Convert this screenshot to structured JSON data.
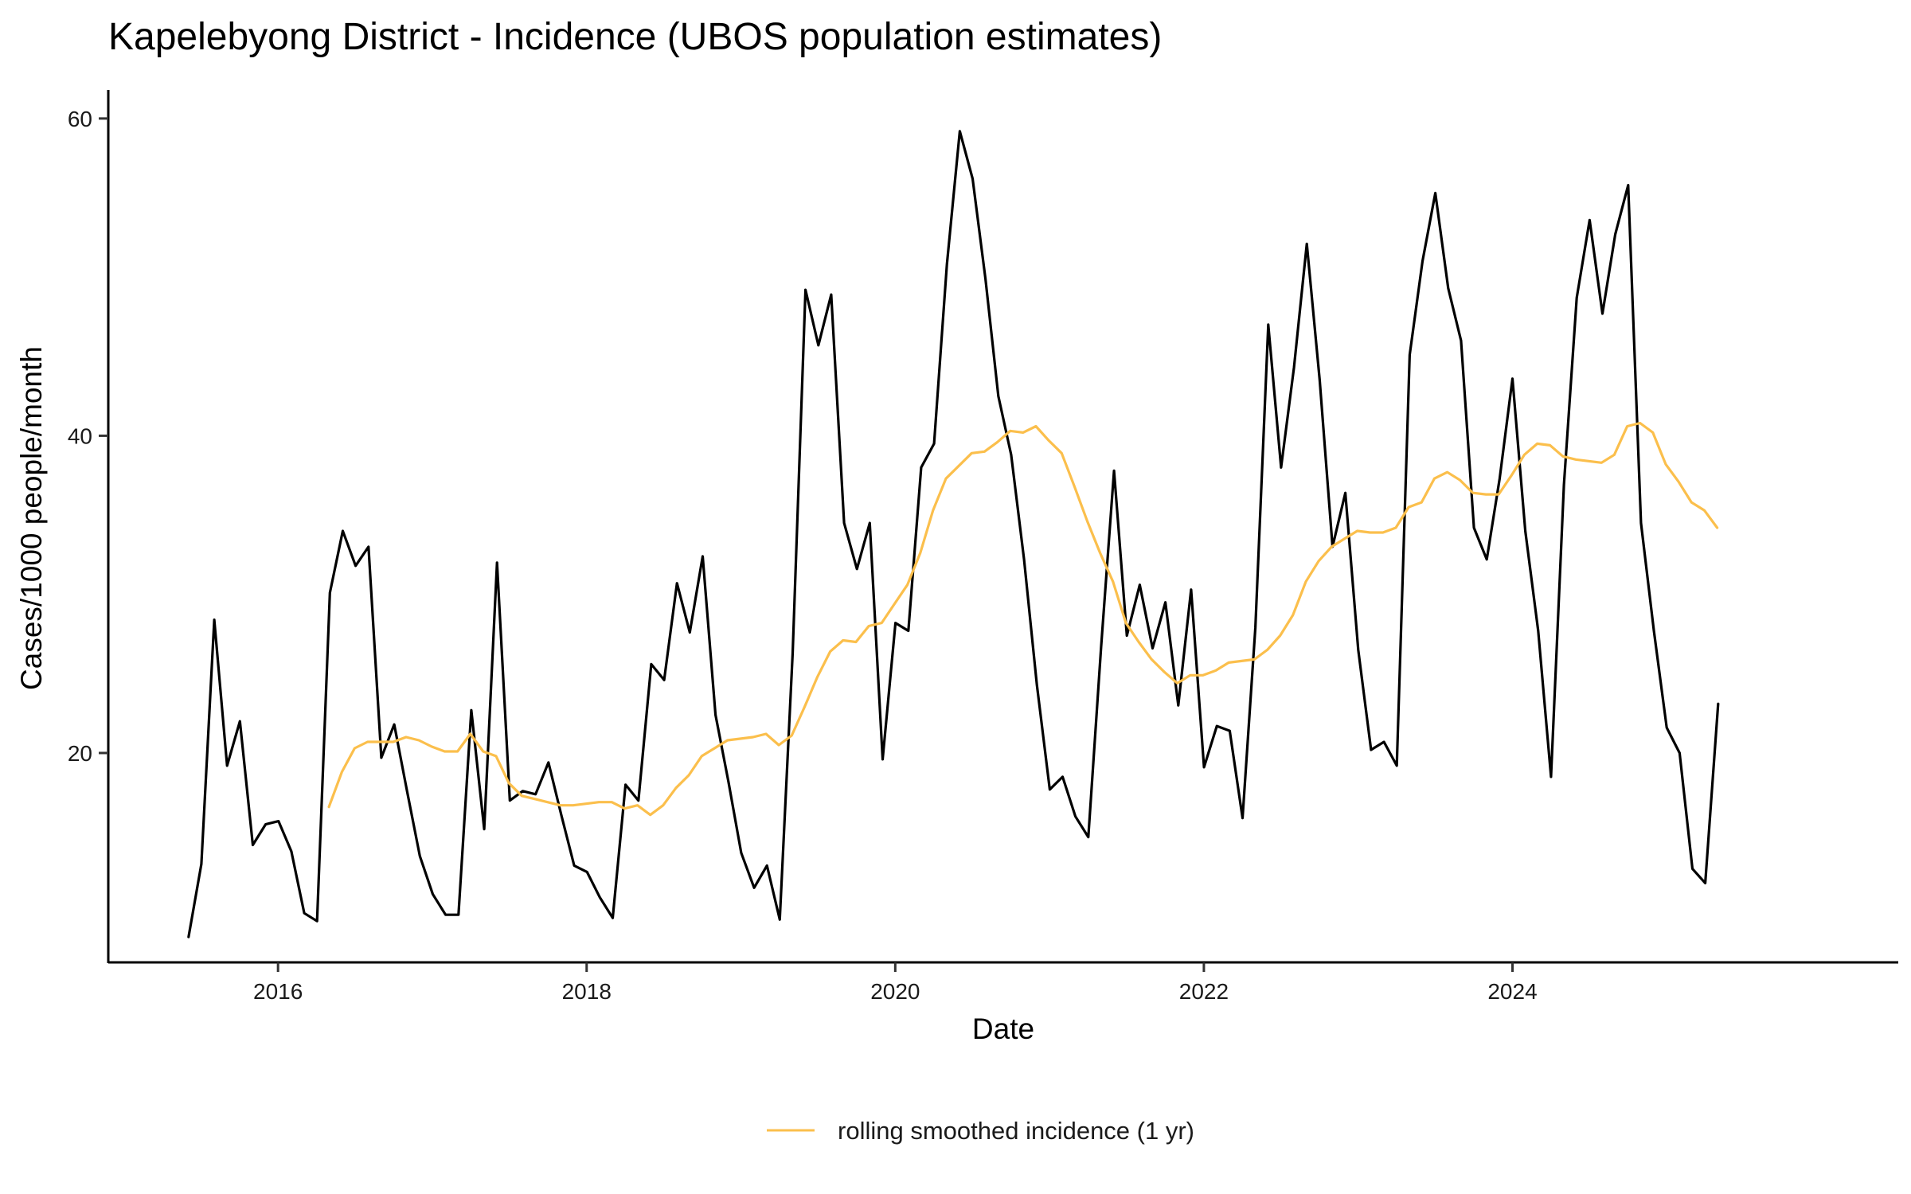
{
  "chart_data": {
    "type": "line",
    "title": "Kapelebyong District - Incidence (UBOS population estimates)",
    "xlabel": "Date",
    "ylabel": "Cases/1000 people/month",
    "xlim": [
      2014.9,
      2026.5
    ],
    "ylim": [
      6.8,
      61.8
    ],
    "x_ticks": [
      {
        "value": 2016,
        "label": "2016"
      },
      {
        "value": 2018,
        "label": "2018"
      },
      {
        "value": 2020,
        "label": "2020"
      },
      {
        "value": 2022,
        "label": "2022"
      },
      {
        "value": 2024,
        "label": "2024"
      }
    ],
    "y_ticks": [
      {
        "value": 20,
        "label": "20"
      },
      {
        "value": 40,
        "label": "40"
      },
      {
        "value": 60,
        "label": "60"
      }
    ],
    "grid": false,
    "legend_position": "bottom",
    "series": [
      {
        "name": "incidence",
        "color": "#000000",
        "in_legend": false,
        "start": 2015.42,
        "step": 0.0833,
        "values": [
          8.4,
          13.0,
          28.4,
          19.2,
          22.0,
          14.2,
          15.5,
          15.7,
          13.8,
          9.9,
          9.4,
          30.1,
          34.0,
          31.8,
          33.0,
          19.7,
          21.8,
          17.6,
          13.5,
          11.1,
          9.8,
          9.8,
          22.7,
          15.2,
          32.0,
          17.0,
          17.6,
          17.4,
          19.4,
          16.1,
          12.9,
          12.5,
          10.9,
          9.6,
          18.0,
          17.0,
          25.6,
          24.6,
          30.7,
          27.6,
          32.4,
          22.4,
          18.2,
          13.7,
          11.5,
          12.9,
          9.5,
          26.3,
          49.2,
          45.7,
          48.9,
          34.5,
          31.6,
          34.5,
          19.6,
          28.2,
          27.7,
          38.0,
          39.5,
          50.8,
          59.2,
          56.2,
          49.9,
          42.5,
          38.8,
          32.2,
          24.3,
          17.7,
          18.5,
          16.0,
          14.7,
          26.7,
          37.8,
          27.4,
          30.6,
          26.6,
          29.5,
          23.0,
          30.3,
          19.1,
          21.7,
          21.4,
          15.9,
          27.9,
          47.0,
          38.0,
          44.3,
          52.1,
          43.5,
          33.0,
          36.4,
          26.5,
          20.2,
          20.7,
          19.2,
          45.1,
          51.0,
          55.3,
          49.3,
          46.0,
          34.2,
          32.2,
          37.3,
          43.6,
          34.0,
          27.7,
          18.5,
          36.9,
          48.7,
          53.6,
          47.7,
          52.7,
          55.8,
          34.5,
          27.7,
          21.6,
          20.0,
          12.7,
          11.8,
          23.1
        ]
      },
      {
        "name": "rolling smoothed incidence (1 yr)",
        "color": "#FBBF4C",
        "in_legend": true,
        "start": 2016.33,
        "step": 0.0833,
        "values": [
          16.6,
          18.8,
          20.3,
          20.7,
          20.7,
          20.7,
          21.0,
          20.8,
          20.4,
          20.1,
          20.1,
          21.2,
          20.1,
          19.8,
          18.1,
          17.3,
          17.1,
          16.9,
          16.7,
          16.7,
          16.8,
          16.9,
          16.9,
          16.5,
          16.7,
          16.1,
          16.7,
          17.8,
          18.6,
          19.8,
          20.3,
          20.8,
          20.9,
          21.0,
          21.2,
          20.5,
          21.1,
          22.9,
          24.8,
          26.4,
          27.1,
          27.0,
          28.0,
          28.2,
          29.4,
          30.6,
          32.6,
          35.3,
          37.3,
          38.1,
          38.9,
          39.0,
          39.6,
          40.3,
          40.2,
          40.6,
          39.7,
          38.9,
          36.8,
          34.6,
          32.6,
          30.8,
          28.2,
          27.0,
          25.9,
          25.1,
          24.4,
          24.9,
          24.9,
          25.2,
          25.7,
          25.8,
          25.9,
          26.5,
          27.4,
          28.7,
          30.8,
          32.1,
          33.0,
          33.5,
          34.0,
          33.9,
          33.9,
          34.2,
          35.5,
          35.8,
          37.3,
          37.7,
          37.2,
          36.4,
          36.3,
          36.3,
          37.5,
          38.8,
          39.5,
          39.4,
          38.7,
          38.5,
          38.4,
          38.3,
          38.8,
          40.6,
          40.8,
          40.2,
          38.2,
          37.1,
          35.8,
          35.3,
          34.2
        ]
      }
    ]
  }
}
